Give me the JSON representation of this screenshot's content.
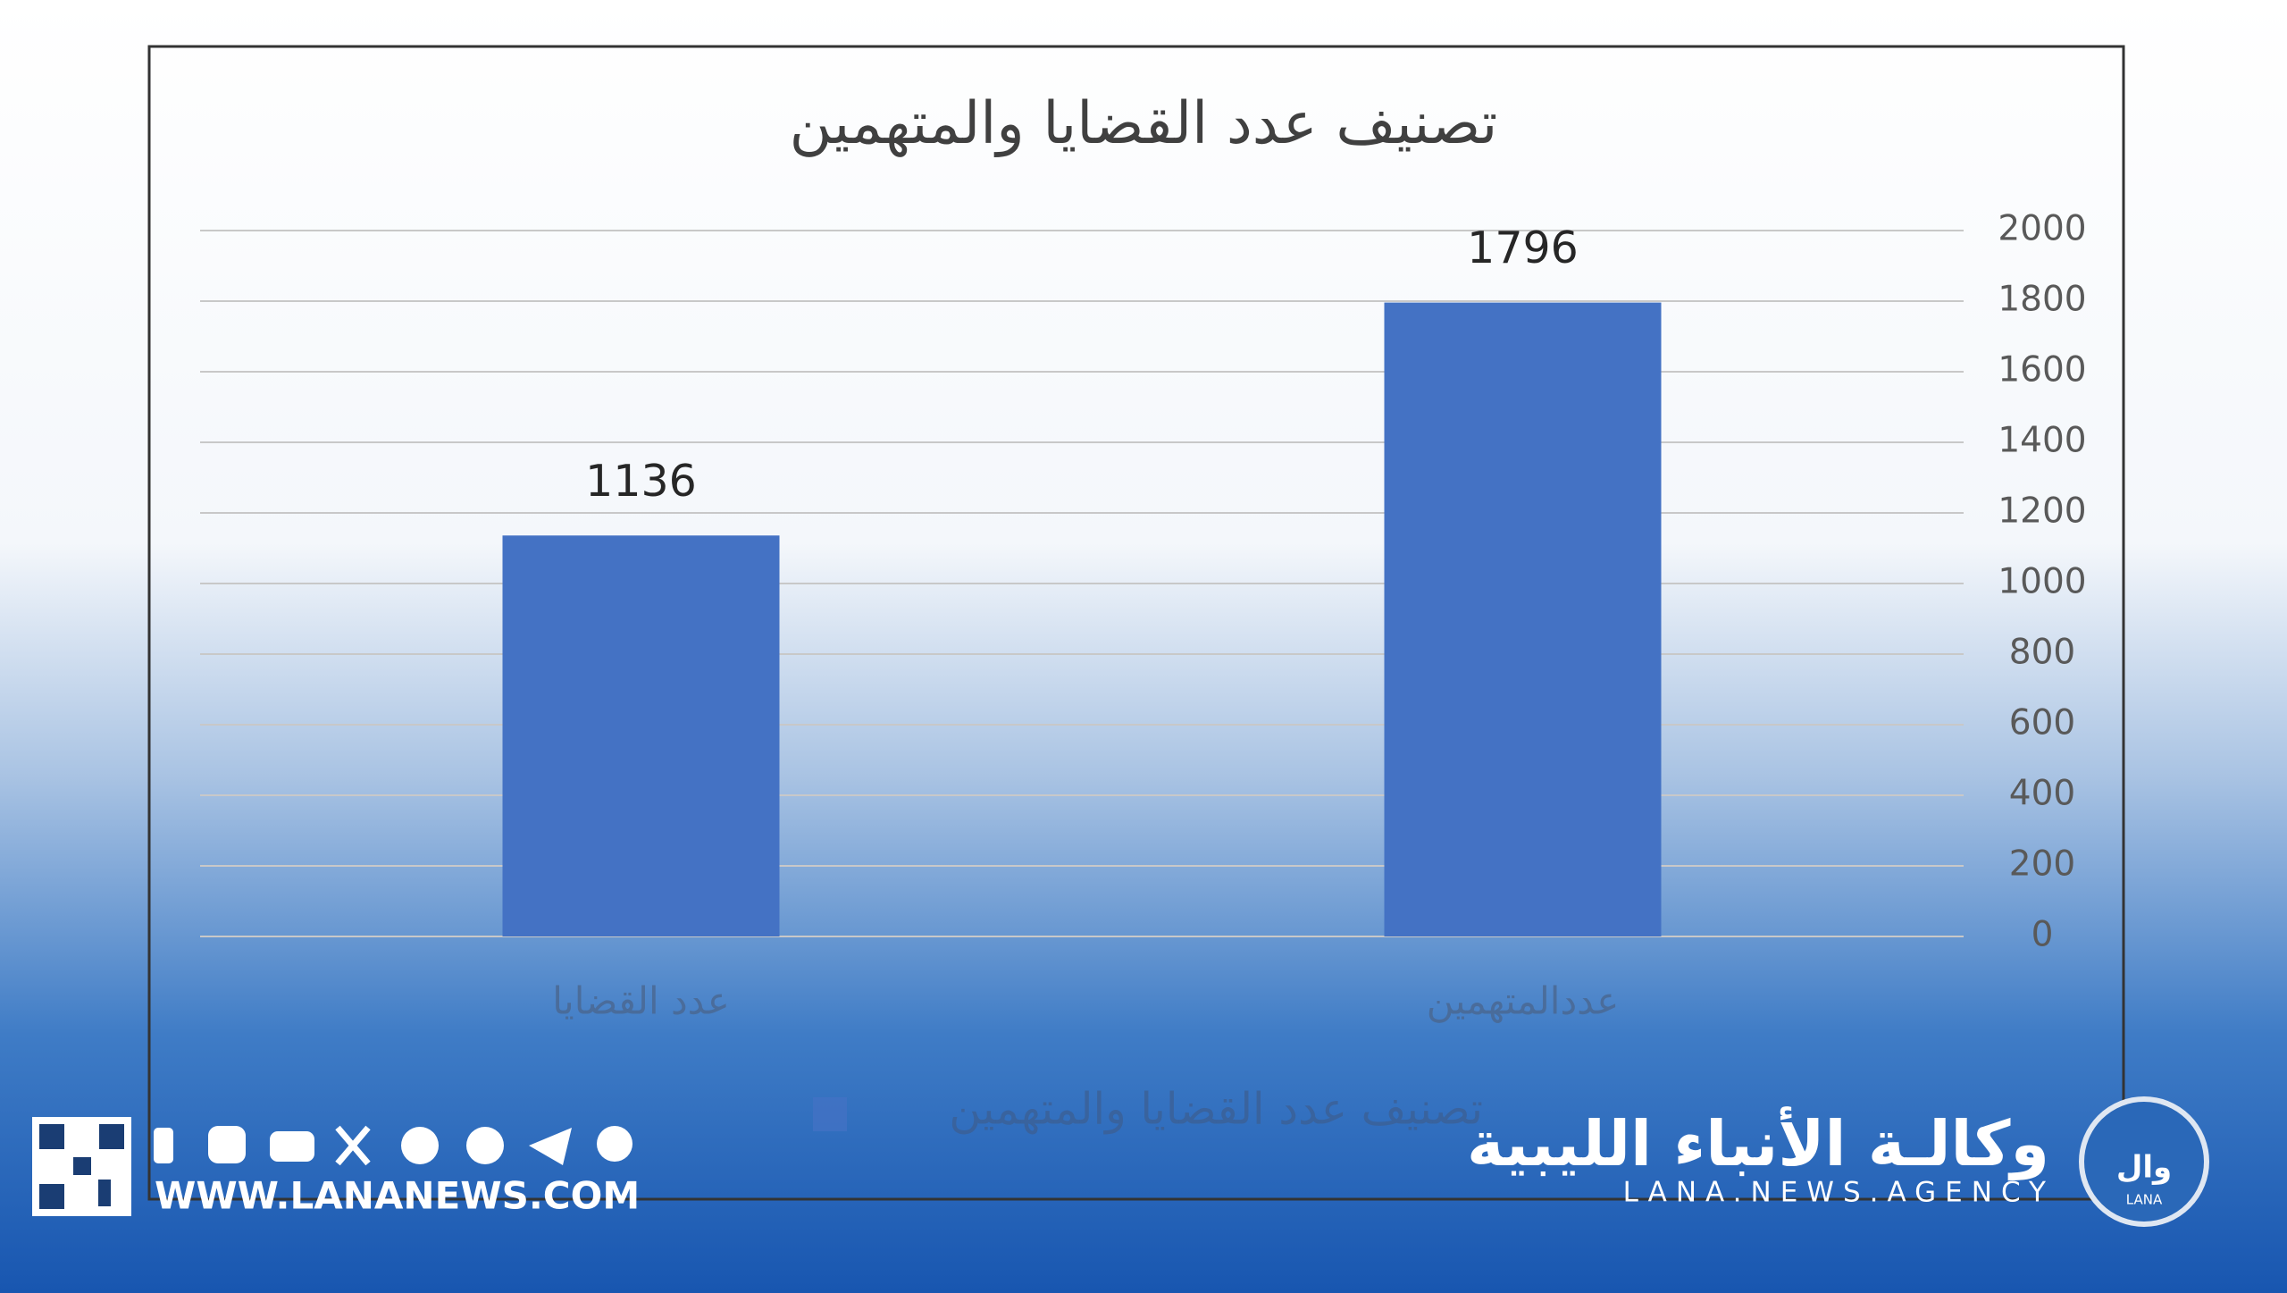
{
  "chart_data": {
    "type": "bar",
    "title": "تصنيف عدد القضايا والمتهمين",
    "categories": [
      "عددالمتهمين",
      "عدد القضايا"
    ],
    "series": [
      {
        "name": "تصنيف عدد القضايا والمتهمين",
        "color": "#4472c4",
        "values": [
          1796,
          1136
        ]
      }
    ],
    "ylim": [
      0,
      2000
    ],
    "yticks": [
      0,
      200,
      400,
      600,
      800,
      1000,
      1200,
      1400,
      1600,
      1800,
      2000
    ],
    "grid": true,
    "y_axis_side": "right",
    "category_direction": "rtl"
  },
  "branding": {
    "website": "WWW.LANANEWS.COM",
    "agency_name": "وكالـة الأنباء الليبية",
    "agency_latin": "LANA.NEWS.AGENCY",
    "logo_arabic": "وال",
    "logo_text": "LANA"
  }
}
